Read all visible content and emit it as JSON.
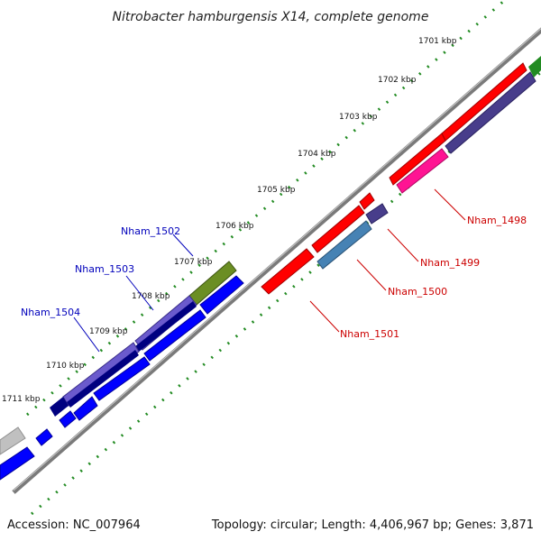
{
  "title": "Nitrobacter hamburgensis X14, complete genome",
  "accession": "Accession: NC_007964",
  "topology_info": "Topology: circular; Length: 4,406,967 bp; Genes: 3,871",
  "ticks": [
    "1701 kbp",
    "1702 kbp",
    "1703 kbp",
    "1704 kbp",
    "1705 kbp",
    "1706 kbp",
    "1707 kbp",
    "1708 kbp",
    "1709 kbp",
    "1710 kbp",
    "1711 kbp"
  ],
  "gene_labels": {
    "left": [
      "Nham_1502",
      "Nham_1503",
      "Nham_1504"
    ],
    "right": [
      "Nham_1498",
      "Nham_1499",
      "Nham_1500",
      "Nham_1501"
    ]
  },
  "colors": {
    "backbone": "#808080",
    "dots": "#228b22",
    "forward_red": "#ff0000",
    "slate": "#483d8b",
    "pink": "#ff1493",
    "steel": "#4682b4",
    "olive": "#6b8e23",
    "blue": "#0000ff",
    "navy": "#000080",
    "medium_slate": "#6a5acd",
    "gray": "#c0c0c0",
    "green": "#228b22",
    "label_blue": "#0000bb",
    "label_red": "#cc0000"
  }
}
